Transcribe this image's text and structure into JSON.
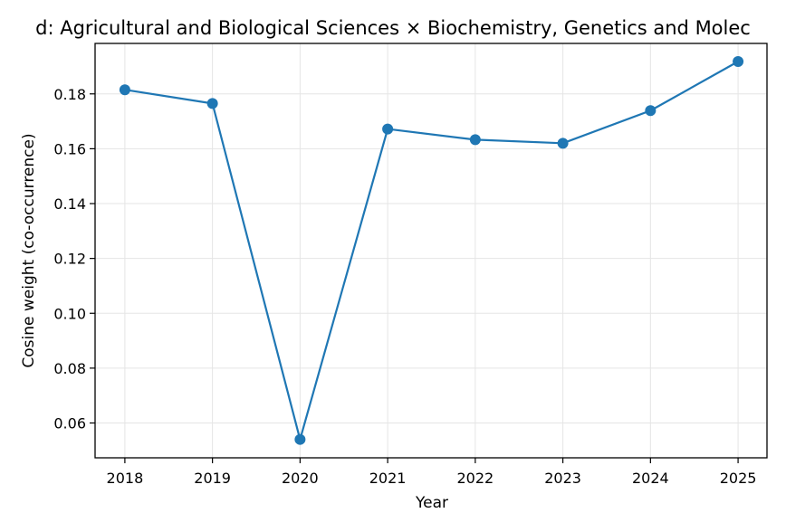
{
  "chart_data": {
    "type": "line",
    "title": "d: Agricultural and Biological Sciences × Biochemistry, Genetics and Molec",
    "xlabel": "Year",
    "ylabel": "Cosine weight (co-occurrence)",
    "x": [
      2018,
      2019,
      2020,
      2021,
      2022,
      2023,
      2024,
      2025
    ],
    "series": [
      {
        "values": [
          0.1815,
          0.1765,
          0.054,
          0.1672,
          0.1633,
          0.162,
          0.1739,
          0.1918
        ]
      }
    ],
    "xlim": [
      2017.66,
      2025.33
    ],
    "ylim": [
      0.0473,
      0.1984
    ],
    "yticks": [
      0.06,
      0.08,
      0.1,
      0.12,
      0.14,
      0.16,
      0.18
    ],
    "ytick_labels": [
      "0.06",
      "0.08",
      "0.10",
      "0.12",
      "0.14",
      "0.16",
      "0.18"
    ],
    "xticks": [
      2018,
      2019,
      2020,
      2021,
      2022,
      2023,
      2024,
      2025
    ],
    "xtick_labels": [
      "2018",
      "2019",
      "2020",
      "2021",
      "2022",
      "2023",
      "2024",
      "2025"
    ],
    "grid": true,
    "legend": "none",
    "colors": {
      "line": "#1f77b4",
      "grid": "#e5e5e5",
      "axis": "#000000"
    }
  }
}
